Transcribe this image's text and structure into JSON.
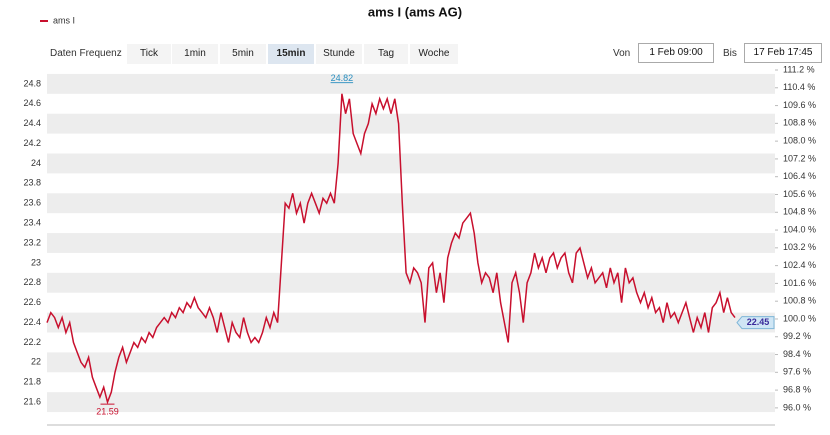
{
  "toolbar": {
    "label": "Daten Frequenz",
    "buttons": [
      "Tick",
      "1min",
      "5min",
      "15min",
      "Stunde",
      "Tag",
      "Woche"
    ],
    "active_button": 3,
    "from_label": "Von",
    "from": "1 Feb 09:00",
    "to_label": "Bis",
    "to": "17 Feb 17:45"
  },
  "chart_data": {
    "type": "line",
    "title": "ams I (ams AG)",
    "series": [
      {
        "name": "ams I",
        "color": "#c8102e",
        "values": [
          22.4,
          22.5,
          22.45,
          22.35,
          22.45,
          22.3,
          22.4,
          22.2,
          22.1,
          22.0,
          21.95,
          22.05,
          21.85,
          21.75,
          21.65,
          21.75,
          21.6,
          21.7,
          21.9,
          22.05,
          22.15,
          22.0,
          22.1,
          22.2,
          22.15,
          22.25,
          22.2,
          22.3,
          22.25,
          22.35,
          22.4,
          22.45,
          22.4,
          22.5,
          22.45,
          22.55,
          22.5,
          22.6,
          22.55,
          22.65,
          22.55,
          22.5,
          22.45,
          22.55,
          22.45,
          22.3,
          22.5,
          22.35,
          22.2,
          22.4,
          22.3,
          22.25,
          22.45,
          22.3,
          22.2,
          22.25,
          22.2,
          22.3,
          22.45,
          22.35,
          22.5,
          22.4,
          23.0,
          23.6,
          23.55,
          23.7,
          23.5,
          23.6,
          23.4,
          23.6,
          23.7,
          23.6,
          23.5,
          23.65,
          23.6,
          23.7,
          23.6,
          24.0,
          24.7,
          24.5,
          24.65,
          24.3,
          24.2,
          24.1,
          24.3,
          24.4,
          24.6,
          24.5,
          24.65,
          24.55,
          24.65,
          24.5,
          24.65,
          24.4,
          23.6,
          22.9,
          22.8,
          22.95,
          22.9,
          22.8,
          22.4,
          22.95,
          23.0,
          22.7,
          22.9,
          22.6,
          23.05,
          23.2,
          23.3,
          23.25,
          23.4,
          23.45,
          23.5,
          23.3,
          23.0,
          22.8,
          22.9,
          22.85,
          22.7,
          22.9,
          22.6,
          22.4,
          22.2,
          22.8,
          22.9,
          22.7,
          22.4,
          22.8,
          22.9,
          23.1,
          22.95,
          23.05,
          22.9,
          23.05,
          23.1,
          22.95,
          23.05,
          23.1,
          22.9,
          22.8,
          23.1,
          23.15,
          23.0,
          22.85,
          22.95,
          22.8,
          22.85,
          22.9,
          22.75,
          22.95,
          22.8,
          22.9,
          22.6,
          22.95,
          22.8,
          22.85,
          22.7,
          22.6,
          22.7,
          22.55,
          22.65,
          22.5,
          22.55,
          22.4,
          22.6,
          22.45,
          22.5,
          22.4,
          22.5,
          22.6,
          22.45,
          22.3,
          22.45,
          22.35,
          22.5,
          22.3,
          22.55,
          22.6,
          22.7,
          22.5,
          22.65,
          22.5,
          22.45
        ]
      }
    ],
    "max_label": 24.82,
    "min_label": 21.59,
    "last_label": 22.45,
    "ylim": [
      21.37,
      24.98
    ],
    "yticks": [
      21.6,
      21.8,
      22,
      22.2,
      22.4,
      22.6,
      22.8,
      23,
      23.2,
      23.4,
      23.6,
      23.8,
      24,
      24.2,
      24.4,
      24.6,
      24.8
    ],
    "y2lim": [
      95.23,
      111.38
    ],
    "y2ticks": [
      {
        "value": 96.0,
        "label": "96.0 %"
      },
      {
        "value": 96.8,
        "label": "96.8 %"
      },
      {
        "value": 97.6,
        "label": "97.6 %"
      },
      {
        "value": 98.4,
        "label": "98.4 %"
      },
      {
        "value": 99.2,
        "label": "99.2 %"
      },
      {
        "value": 100.0,
        "label": "100.0 %"
      },
      {
        "value": 100.8,
        "label": "100.8 %"
      },
      {
        "value": 101.6,
        "label": "101.6 %"
      },
      {
        "value": 102.4,
        "label": "102.4 %"
      },
      {
        "value": 103.2,
        "label": "103.2 %"
      },
      {
        "value": 104.0,
        "label": "104.0 %"
      },
      {
        "value": 104.8,
        "label": "104.8 %"
      },
      {
        "value": 105.6,
        "label": "105.6 %"
      },
      {
        "value": 106.4,
        "label": "106.4 %"
      },
      {
        "value": 107.2,
        "label": "107.2 %"
      },
      {
        "value": 108.0,
        "label": "108.0 %"
      },
      {
        "value": 108.8,
        "label": "108.8 %"
      },
      {
        "value": 109.6,
        "label": "109.6 %"
      },
      {
        "value": 110.4,
        "label": "110.4 %"
      },
      {
        "value": 111.2,
        "label": "111.2 %"
      }
    ],
    "grid": true
  }
}
